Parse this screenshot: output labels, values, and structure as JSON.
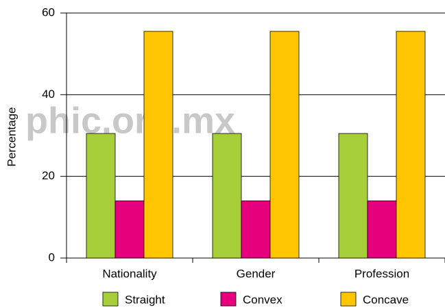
{
  "chart_data": {
    "type": "bar",
    "y_label": "Percentage",
    "watermark": "phic.org.mx",
    "categories": [
      "Nationality",
      "Gender",
      "Profession"
    ],
    "series": [
      {
        "name": "Straight",
        "color": "#a6ce39",
        "values": [
          30.5,
          30.5,
          30.5
        ]
      },
      {
        "name": "Convex",
        "color": "#e6007e",
        "values": [
          14,
          14,
          14
        ]
      },
      {
        "name": "Concave",
        "color": "#ffc600",
        "values": [
          55.5,
          55.5,
          55.5
        ]
      }
    ],
    "ylim": [
      0,
      60
    ],
    "yticks": [
      0,
      20,
      40,
      60
    ],
    "grid": true,
    "legend": "bottom"
  }
}
